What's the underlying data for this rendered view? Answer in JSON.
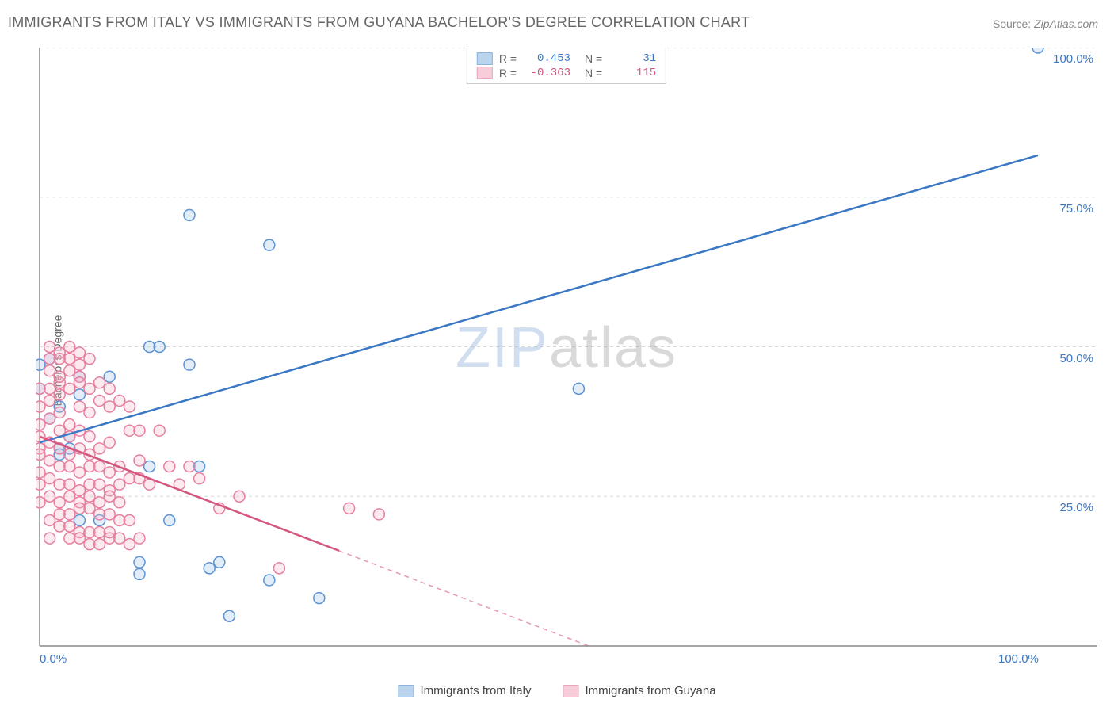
{
  "title": "IMMIGRANTS FROM ITALY VS IMMIGRANTS FROM GUYANA BACHELOR'S DEGREE CORRELATION CHART",
  "source_label": "Source:",
  "source_value": "ZipAtlas.com",
  "y_axis_label": "Bachelor's Degree",
  "watermark_a": "ZIP",
  "watermark_b": "atlas",
  "chart": {
    "type": "scatter",
    "xlim": [
      0,
      100
    ],
    "ylim": [
      0,
      100
    ],
    "x_ticks": [
      0,
      100
    ],
    "x_tick_labels": [
      "0.0%",
      "100.0%"
    ],
    "y_ticks": [
      25,
      50,
      75,
      100
    ],
    "y_tick_labels": [
      "25.0%",
      "50.0%",
      "75.0%",
      "100.0%"
    ],
    "grid_color": "#d8d8d8",
    "axis_color": "#888888",
    "background_color": "#ffffff",
    "marker_radius": 7,
    "marker_stroke_width": 1.5,
    "marker_fill_opacity": 0.3,
    "trend_line_width": 2.5,
    "trend_dash": "6 5"
  },
  "series": [
    {
      "name": "Immigrants from Italy",
      "color_stroke": "#5b93d4",
      "color_fill": "#9ec2e8",
      "value_color": "#3b78c4",
      "r_label": "R =",
      "r_value": "0.453",
      "n_label": "N =",
      "n_value": "31",
      "trend": {
        "x1": 0,
        "y1": 34,
        "x2": 100,
        "y2": 82,
        "solid_until_x": 100
      },
      "points": [
        [
          100,
          100
        ],
        [
          54,
          43
        ],
        [
          23,
          67
        ],
        [
          15,
          72
        ],
        [
          4,
          45
        ],
        [
          0,
          47
        ],
        [
          4,
          42
        ],
        [
          11,
          50
        ],
        [
          12,
          50
        ],
        [
          2,
          40
        ],
        [
          3,
          35
        ],
        [
          1,
          38
        ],
        [
          1,
          48
        ],
        [
          0,
          43
        ],
        [
          7,
          45
        ],
        [
          2,
          33
        ],
        [
          3,
          33
        ],
        [
          2,
          32
        ],
        [
          15,
          47
        ],
        [
          11,
          30
        ],
        [
          16,
          30
        ],
        [
          13,
          21
        ],
        [
          4,
          21
        ],
        [
          6,
          21
        ],
        [
          10,
          14
        ],
        [
          10,
          12
        ],
        [
          18,
          14
        ],
        [
          17,
          13
        ],
        [
          23,
          11
        ],
        [
          28,
          8
        ],
        [
          19,
          5
        ]
      ]
    },
    {
      "name": "Immigrants from Guyana",
      "color_stroke": "#e67fa0",
      "color_fill": "#f4b8c9",
      "value_color": "#d4567d",
      "r_label": "R =",
      "r_value": "-0.363",
      "n_label": "N =",
      "n_value": "115",
      "trend": {
        "x1": 0,
        "y1": 35,
        "x2": 55,
        "y2": 0,
        "solid_until_x": 30
      },
      "points": [
        [
          1,
          48
        ],
        [
          2,
          49
        ],
        [
          3,
          50
        ],
        [
          4,
          47
        ],
        [
          5,
          48
        ],
        [
          3,
          46
        ],
        [
          4,
          45
        ],
        [
          5,
          43
        ],
        [
          2,
          42
        ],
        [
          1,
          41
        ],
        [
          0,
          40
        ],
        [
          1,
          38
        ],
        [
          2,
          39
        ],
        [
          3,
          37
        ],
        [
          4,
          40
        ],
        [
          5,
          39
        ],
        [
          6,
          41
        ],
        [
          7,
          40
        ],
        [
          4,
          36
        ],
        [
          5,
          35
        ],
        [
          3,
          35
        ],
        [
          2,
          36
        ],
        [
          1,
          34
        ],
        [
          0,
          33
        ],
        [
          2,
          33
        ],
        [
          3,
          32
        ],
        [
          4,
          33
        ],
        [
          5,
          32
        ],
        [
          6,
          33
        ],
        [
          7,
          34
        ],
        [
          1,
          31
        ],
        [
          2,
          30
        ],
        [
          3,
          30
        ],
        [
          4,
          29
        ],
        [
          5,
          30
        ],
        [
          6,
          30
        ],
        [
          7,
          29
        ],
        [
          8,
          30
        ],
        [
          9,
          36
        ],
        [
          10,
          36
        ],
        [
          1,
          28
        ],
        [
          2,
          27
        ],
        [
          3,
          27
        ],
        [
          4,
          26
        ],
        [
          5,
          27
        ],
        [
          6,
          27
        ],
        [
          7,
          26
        ],
        [
          8,
          27
        ],
        [
          9,
          28
        ],
        [
          10,
          28
        ],
        [
          1,
          25
        ],
        [
          2,
          24
        ],
        [
          3,
          25
        ],
        [
          4,
          24
        ],
        [
          5,
          25
        ],
        [
          6,
          24
        ],
        [
          7,
          25
        ],
        [
          8,
          24
        ],
        [
          2,
          22
        ],
        [
          3,
          22
        ],
        [
          4,
          23
        ],
        [
          5,
          23
        ],
        [
          6,
          22
        ],
        [
          7,
          22
        ],
        [
          8,
          21
        ],
        [
          9,
          21
        ],
        [
          1,
          21
        ],
        [
          2,
          20
        ],
        [
          3,
          20
        ],
        [
          4,
          19
        ],
        [
          5,
          19
        ],
        [
          6,
          19
        ],
        [
          3,
          18
        ],
        [
          4,
          18
        ],
        [
          5,
          17
        ],
        [
          6,
          17
        ],
        [
          7,
          18
        ],
        [
          2,
          44
        ],
        [
          3,
          43
        ],
        [
          4,
          44
        ],
        [
          1,
          46
        ],
        [
          2,
          45
        ],
        [
          0,
          37
        ],
        [
          0,
          35
        ],
        [
          0,
          29
        ],
        [
          0,
          27
        ],
        [
          12,
          36
        ],
        [
          15,
          30
        ],
        [
          10,
          31
        ],
        [
          11,
          27
        ],
        [
          8,
          41
        ],
        [
          9,
          40
        ],
        [
          6,
          44
        ],
        [
          7,
          43
        ],
        [
          3,
          48
        ],
        [
          4,
          49
        ],
        [
          1,
          43
        ],
        [
          1,
          50
        ],
        [
          2,
          48
        ],
        [
          13,
          30
        ],
        [
          14,
          27
        ],
        [
          16,
          28
        ],
        [
          18,
          23
        ],
        [
          20,
          25
        ],
        [
          8,
          18
        ],
        [
          9,
          17
        ],
        [
          7,
          19
        ],
        [
          10,
          18
        ],
        [
          31,
          23
        ],
        [
          34,
          22
        ],
        [
          24,
          13
        ],
        [
          1,
          18
        ],
        [
          0,
          43
        ],
        [
          0,
          24
        ],
        [
          0,
          32
        ]
      ]
    }
  ]
}
